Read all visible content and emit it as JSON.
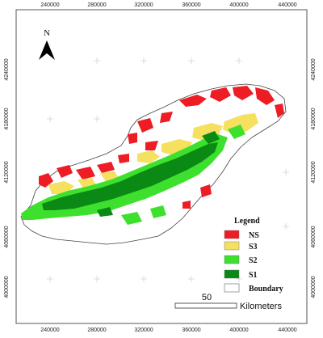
{
  "map": {
    "x_ticks_top": [
      "240000",
      "280000",
      "320000",
      "360000",
      "400000",
      "440000"
    ],
    "x_ticks_bottom": [
      "240000",
      "280000",
      "320000",
      "360000",
      "400000",
      "440000"
    ],
    "y_ticks_left": [
      "4240000",
      "4180000",
      "4120000",
      "4060000",
      "4000000"
    ],
    "y_ticks_right": [
      "4240000",
      "4180000",
      "4120000",
      "4060000",
      "4000000"
    ],
    "north_label": "N",
    "legend": {
      "title": "Legend",
      "items": [
        {
          "label": "NS",
          "color": "#ee1c24"
        },
        {
          "label": "S3",
          "color": "#f5e060"
        },
        {
          "label": "S2",
          "color": "#3ee02e"
        },
        {
          "label": "S1",
          "color": "#0a8a14"
        },
        {
          "label": "Boundary",
          "color": "#ffffff"
        }
      ]
    },
    "scale_bar": {
      "value": "50",
      "unit": "Kilometers"
    }
  }
}
